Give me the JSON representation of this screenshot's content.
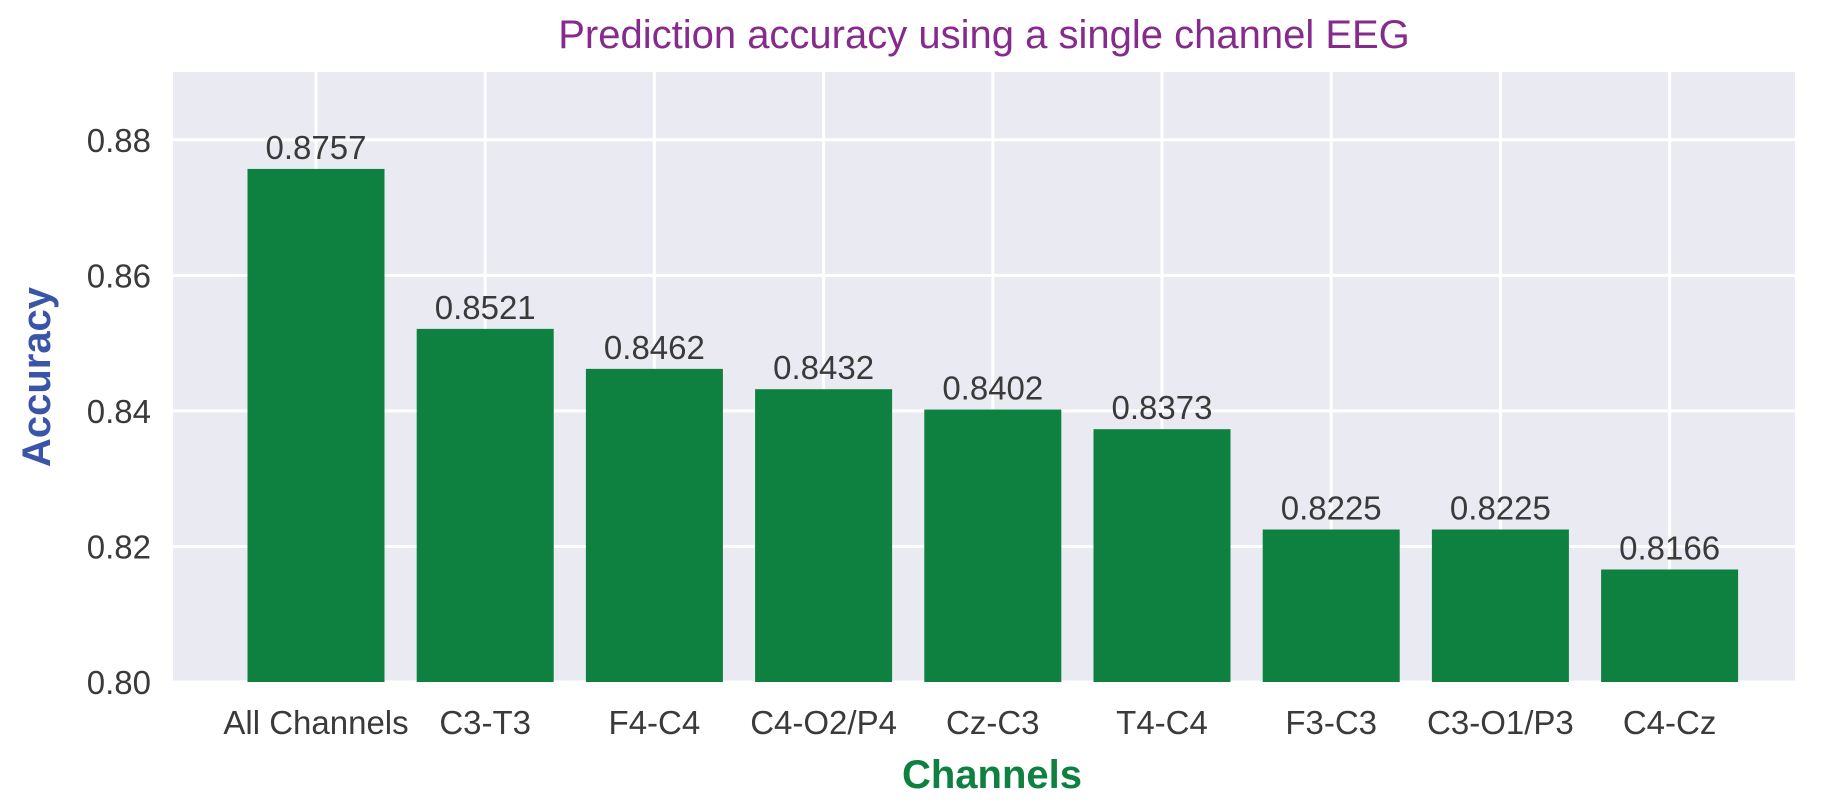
{
  "chart_data": {
    "type": "bar",
    "title": "Prediction accuracy using a single channel EEG",
    "xlabel": "Channels",
    "ylabel": "Accuracy",
    "categories": [
      "All Channels",
      "C3-T3",
      "F4-C4",
      "C4-O2/P4",
      "Cz-C3",
      "T4-C4",
      "F3-C3",
      "C3-O1/P3",
      "C4-Cz"
    ],
    "values": [
      0.8757,
      0.8521,
      0.8462,
      0.8432,
      0.8402,
      0.8373,
      0.8225,
      0.8225,
      0.8166
    ],
    "value_labels": [
      "0.8757",
      "0.8521",
      "0.8462",
      "0.8432",
      "0.8402",
      "0.8373",
      "0.8225",
      "0.8225",
      "0.8166"
    ],
    "ylim": [
      0.8,
      0.89
    ],
    "yticks": [
      0.8,
      0.82,
      0.84,
      0.86,
      0.88
    ],
    "ytick_labels": [
      "0.80",
      "0.82",
      "0.84",
      "0.86",
      "0.88"
    ],
    "grid": true
  },
  "colors": {
    "bar": "#0e8040",
    "background": "#eaeaf2",
    "grid": "#ffffff",
    "title": "#862a8e",
    "xlabel": "#0e8040",
    "ylabel": "#3a54a8"
  }
}
